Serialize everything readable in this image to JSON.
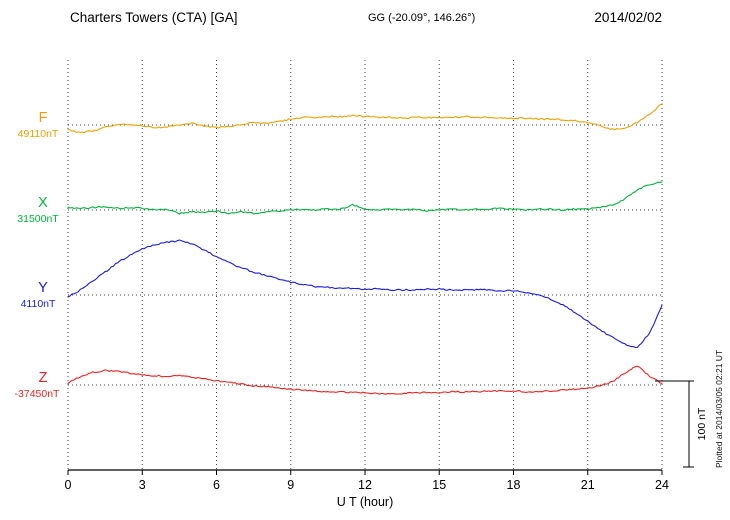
{
  "header": {
    "station_title": "Charters Towers (CTA)  [GA]",
    "geo_coords": "GG (-20.09°, 146.26°)",
    "date": "2014/02/02"
  },
  "footer_note": "Plotted at 2014/03/05 02:21 UT",
  "scale_bar": {
    "label": "100 nT",
    "value_nT": 100
  },
  "chart_data": {
    "type": "line",
    "title": "Charters Towers (CTA)  [GA]",
    "subtitle": "GG (-20.09°, 146.26°)",
    "date": "2014/02/02",
    "xlabel": "U T (hour)",
    "ylabel": "",
    "x_range": [
      0,
      24
    ],
    "x_ticks": [
      0,
      3,
      6,
      9,
      12,
      15,
      18,
      21,
      24
    ],
    "grid": "dotted",
    "legend_position": "left",
    "scale_bar_nT": 100,
    "x_hours": [
      0,
      0.5,
      1,
      1.5,
      2,
      2.5,
      3,
      3.5,
      4,
      4.5,
      5,
      5.5,
      6,
      6.5,
      7,
      7.5,
      8,
      8.5,
      9,
      9.5,
      10,
      10.5,
      11,
      11.5,
      12,
      12.5,
      13,
      13.5,
      14,
      14.5,
      15,
      15.5,
      16,
      16.5,
      17,
      17.5,
      18,
      18.5,
      19,
      19.5,
      20,
      20.5,
      21,
      21.5,
      22,
      22.5,
      23,
      23.5,
      24
    ],
    "series": [
      {
        "name": "F",
        "baseline_label": "49110nT",
        "baseline_nT": 49110,
        "color": "#eca000",
        "offsets_nT": [
          -6,
          -9,
          -7,
          -3,
          0,
          1,
          -1,
          -3,
          -2,
          0,
          2,
          -1,
          -3,
          -2,
          1,
          3,
          2,
          4,
          7,
          9,
          9,
          10,
          10,
          11,
          10,
          9,
          9,
          8,
          9,
          9,
          8,
          9,
          10,
          9,
          9,
          8,
          8,
          8,
          7,
          7,
          6,
          5,
          3,
          -1,
          -5,
          -4,
          3,
          13,
          25
        ]
      },
      {
        "name": "X",
        "baseline_label": "31500nT",
        "baseline_nT": 31500,
        "color": "#00b43c",
        "offsets_nT": [
          3,
          2,
          3,
          4,
          2,
          3,
          2,
          0,
          1,
          -4,
          -2,
          -3,
          -1,
          -4,
          -2,
          -4,
          -2,
          -1,
          0,
          1,
          0,
          1,
          1,
          6,
          1,
          0,
          1,
          0,
          1,
          -1,
          0,
          1,
          0,
          1,
          1,
          2,
          1,
          0,
          1,
          1,
          0,
          1,
          1,
          3,
          6,
          13,
          24,
          30,
          33
        ]
      },
      {
        "name": "Y",
        "baseline_label": "4110nT",
        "baseline_nT": 4110,
        "color": "#1a1aee",
        "offsets_nT": [
          -2,
          6,
          16,
          27,
          38,
          47,
          54,
          59,
          62,
          64,
          60,
          53,
          45,
          38,
          32,
          27,
          23,
          19,
          15,
          12,
          10,
          9,
          8,
          8,
          7,
          7,
          6,
          6,
          6,
          7,
          7,
          6,
          6,
          6,
          6,
          5,
          5,
          3,
          0,
          -5,
          -12,
          -21,
          -31,
          -41,
          -50,
          -58,
          -62,
          -45,
          -12
        ]
      },
      {
        "name": "Z",
        "baseline_label": "-37450nT",
        "baseline_nT": -37450,
        "color": "#ee2222",
        "offsets_nT": [
          2,
          10,
          15,
          17,
          16,
          14,
          12,
          11,
          10,
          11,
          9,
          7,
          5,
          3,
          1,
          -1,
          -2,
          -3,
          -5,
          -6,
          -7,
          -8,
          -8,
          -9,
          -9,
          -10,
          -10,
          -10,
          -9,
          -9,
          -9,
          -8,
          -8,
          -8,
          -7,
          -7,
          -7,
          -8,
          -8,
          -7,
          -6,
          -5,
          -4,
          -1,
          4,
          14,
          23,
          10,
          2
        ]
      }
    ]
  }
}
